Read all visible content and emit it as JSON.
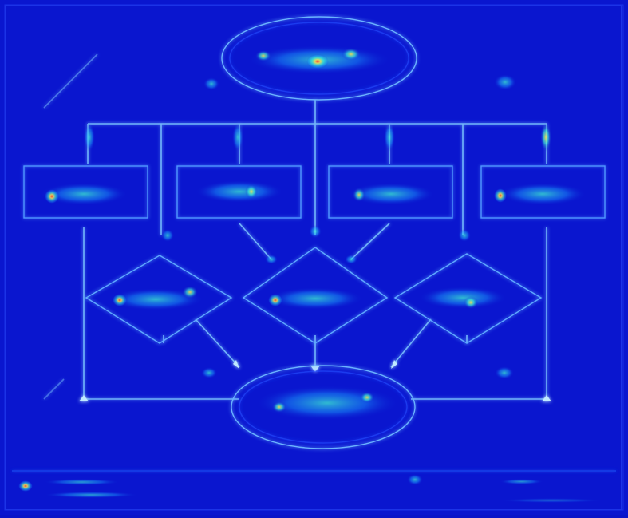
{
  "image": {
    "style": "saliency-heatmap",
    "palette": {
      "background": "#0a16cf",
      "edge": "#7ec7ff",
      "edge_glow": "#1f59ff",
      "heat_low": "#1aa3ff",
      "heat_mid": "#40ffd2",
      "heat_high": "#ffe34d",
      "heat_peak": "#ff3b2f"
    }
  },
  "diagram": {
    "type": "flowchart",
    "nodes": [
      {
        "id": "start",
        "shape": "ellipse",
        "label": ""
      },
      {
        "id": "p1",
        "shape": "rectangle",
        "label": ""
      },
      {
        "id": "p2",
        "shape": "rectangle",
        "label": ""
      },
      {
        "id": "p3",
        "shape": "rectangle",
        "label": ""
      },
      {
        "id": "p4",
        "shape": "rectangle",
        "label": ""
      },
      {
        "id": "d1",
        "shape": "diamond",
        "label": ""
      },
      {
        "id": "d2",
        "shape": "diamond",
        "label": ""
      },
      {
        "id": "d3",
        "shape": "diamond",
        "label": ""
      },
      {
        "id": "end",
        "shape": "ellipse",
        "label": ""
      }
    ],
    "legend": {
      "items": [
        {
          "label": ""
        },
        {
          "label": ""
        }
      ]
    },
    "footer": {
      "center": "",
      "right_top": "",
      "right_bottom": ""
    }
  }
}
